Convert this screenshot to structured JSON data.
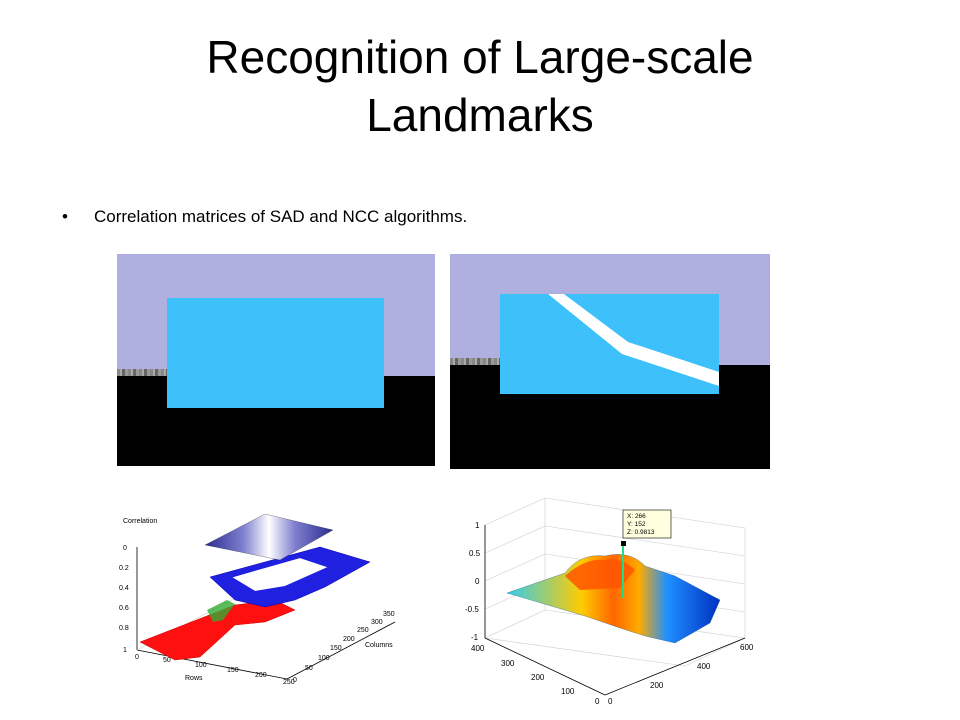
{
  "slide": {
    "title_line1": "Recognition of Large-scale",
    "title_line2": "Landmarks",
    "bullet_symbol": "•",
    "bullet_text": "Correlation matrices of SAD and NCC algorithms."
  },
  "colors": {
    "sky": "#b0b0e0",
    "landmark": "#3ec0fa",
    "ground": "#000000",
    "stripe": "#ffffff"
  },
  "sad_plot": {
    "zlabel": "Correlation",
    "z_ticks": [
      "0",
      "0.2",
      "0.4",
      "0.6",
      "0.8",
      "1"
    ],
    "rows_label": "Rows",
    "rows_ticks": [
      "0",
      "50",
      "100",
      "150",
      "200",
      "250"
    ],
    "columns_label": "Columns",
    "columns_ticks": [
      "0",
      "50",
      "100",
      "150",
      "200",
      "250",
      "300",
      "350"
    ]
  },
  "ncc_plot": {
    "z_ticks": [
      "1",
      "0.5",
      "0",
      "-0.5",
      "-1"
    ],
    "y_ticks": [
      "400",
      "300",
      "200",
      "100",
      "0"
    ],
    "x_ticks": [
      "0",
      "200",
      "400",
      "600"
    ],
    "datatip_x": "X: 266",
    "datatip_y": "Y: 152",
    "datatip_z": "Z: 0.9813"
  }
}
